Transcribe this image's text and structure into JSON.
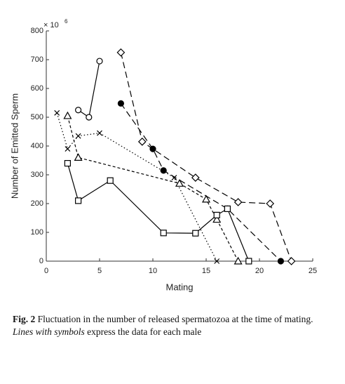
{
  "chart_data": {
    "type": "line",
    "y_multiplier": "× 10",
    "y_multiplier_exp": "6",
    "xlabel": "Mating",
    "ylabel": "Number of Emitted Sperm",
    "xlim": [
      0,
      25
    ],
    "xticks": [
      0,
      5,
      10,
      15,
      20,
      25
    ],
    "ylim": [
      0,
      800
    ],
    "yticks": [
      0,
      100,
      200,
      300,
      400,
      500,
      600,
      700,
      800
    ],
    "series": [
      {
        "marker": "circle-open",
        "dash": "solid",
        "color": "#000000",
        "x": [
          3,
          4,
          5
        ],
        "values": [
          525,
          500,
          695
        ]
      },
      {
        "marker": "diamond",
        "dash": "dash",
        "color": "#000000",
        "x": [
          7,
          9,
          14,
          18,
          21,
          23
        ],
        "values": [
          725,
          415,
          290,
          205,
          200,
          0
        ]
      },
      {
        "marker": "circle-filled",
        "dash": "dash",
        "color": "#000000",
        "x": [
          7,
          10,
          11,
          17,
          22
        ],
        "values": [
          548,
          390,
          315,
          182,
          0
        ]
      },
      {
        "marker": "cross",
        "dash": "dot",
        "color": "#000000",
        "x": [
          1,
          2,
          3,
          5,
          12,
          16
        ],
        "values": [
          515,
          390,
          435,
          445,
          290,
          0
        ]
      },
      {
        "marker": "triangle",
        "dash": "shortdash",
        "color": "#000000",
        "x": [
          2,
          3,
          12.5,
          15,
          16,
          18
        ],
        "values": [
          505,
          360,
          270,
          215,
          145,
          0
        ]
      },
      {
        "marker": "square",
        "dash": "solid",
        "color": "#000000",
        "x": [
          2,
          3,
          6,
          11,
          14,
          16,
          17,
          19
        ],
        "values": [
          340,
          210,
          280,
          98,
          97,
          160,
          182,
          0
        ]
      }
    ]
  },
  "caption": {
    "label": "Fig. 2",
    "text1": "Fluctuation in the number of released spermatozoa at the time of mating.",
    "emphasis": "Lines with symbols",
    "text2": "express the data for each male"
  }
}
